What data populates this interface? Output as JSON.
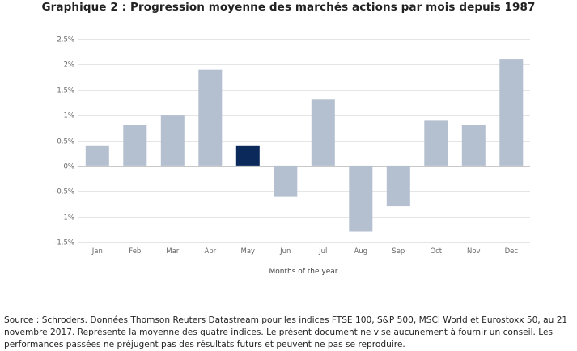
{
  "title": "Graphique 2 : Progression moyenne des marchés actions par mois depuis 1987",
  "chart_data": {
    "type": "bar",
    "title": "Graphique 2 : Progression moyenne des marchés actions par mois depuis 1987",
    "xlabel": "Months of the year",
    "ylabel": "",
    "categories": [
      "Jan",
      "Feb",
      "Mar",
      "Apr",
      "May",
      "Jun",
      "Jul",
      "Aug",
      "Sep",
      "Oct",
      "Nov",
      "Dec"
    ],
    "values": [
      0.4,
      0.8,
      1.0,
      1.9,
      0.4,
      -0.6,
      1.3,
      -1.3,
      -0.8,
      0.9,
      0.8,
      2.1
    ],
    "highlight": "May",
    "ylim": [
      -1.5,
      2.5
    ],
    "yticks": [
      2.5,
      2,
      1.5,
      1,
      0.5,
      0,
      -0.5,
      -1,
      -1.5
    ],
    "ytick_labels": [
      "2.5%",
      "2%",
      "1.5%",
      "1%",
      "0.5%",
      "0%",
      "-0.5%",
      "-1%",
      "-1.5%"
    ],
    "grid": true,
    "colors": {
      "bar": "#b4bfcf",
      "highlight": "#0b2a5b",
      "grid": "#e5e5e5",
      "zero_line": "#c8c8c8",
      "tick_text": "#666666"
    }
  },
  "source": "Source : Schroders. Données Thomson Reuters Datastream pour les indices FTSE 100, S&P 500, MSCI World et Eurostoxx 50, au 21 novembre 2017. Représente la moyenne des quatre indices. Le présent document ne vise aucunement à fournir un conseil. Les performances passées ne préjugent pas des résultats futurs et peuvent ne pas se reproduire."
}
